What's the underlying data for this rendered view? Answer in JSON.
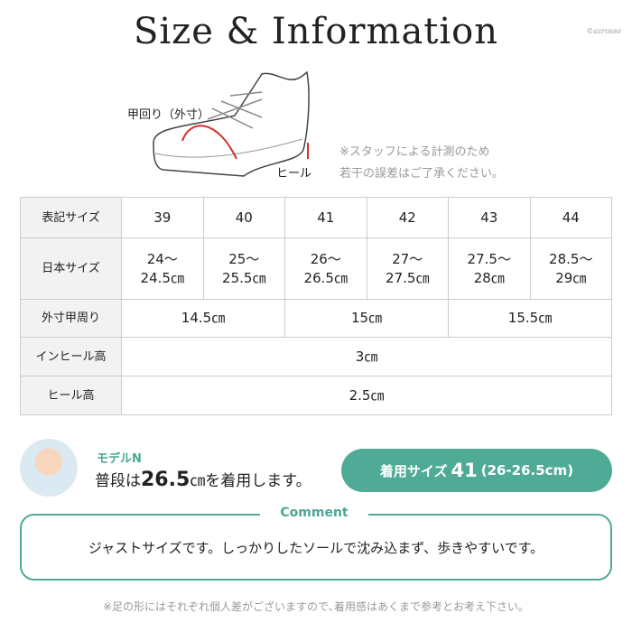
{
  "title": "Size & Information",
  "brand": "©azrosso",
  "diagram": {
    "instep_label": "甲回り（外寸）",
    "heel_label": "ヒール",
    "note_line1": "※スタッフによる計測のため",
    "note_line2": "若干の誤差はご了承ください。"
  },
  "table": {
    "headers": [
      "表記サイズ",
      "日本サイズ",
      "外寸甲周り",
      "インヒール高",
      "ヒール高"
    ],
    "sizes": [
      "39",
      "40",
      "41",
      "42",
      "43",
      "44"
    ],
    "japan": [
      [
        "24～",
        "24.5㎝"
      ],
      [
        "25～",
        "25.5㎝"
      ],
      [
        "26～",
        "26.5㎝"
      ],
      [
        "27～",
        "27.5㎝"
      ],
      [
        "27.5～",
        "28㎝"
      ],
      [
        "28.5～",
        "29㎝"
      ]
    ],
    "instep": [
      "14.5㎝",
      "15㎝",
      "15.5㎝"
    ],
    "inheel": "3㎝",
    "heel": "2.5㎝"
  },
  "model": {
    "name": "モデルN",
    "text_pre": "普段は",
    "size": "26.5",
    "text_unit": "㎝",
    "text_post": "を着用します。"
  },
  "badge": {
    "label": "着用サイズ",
    "size": "41",
    "range": "(26-26.5cm)"
  },
  "comment": {
    "label": "Comment",
    "text": "ジャストサイズです。しっかりしたソールで沈み込まず、歩きやすいです。"
  },
  "footer": "※足の形にはそれぞれ個人差がございますので､着用感はあくまで参考とお考え下さい。",
  "colors": {
    "accent": "#4fab96",
    "measure_line": "#d0312d"
  }
}
